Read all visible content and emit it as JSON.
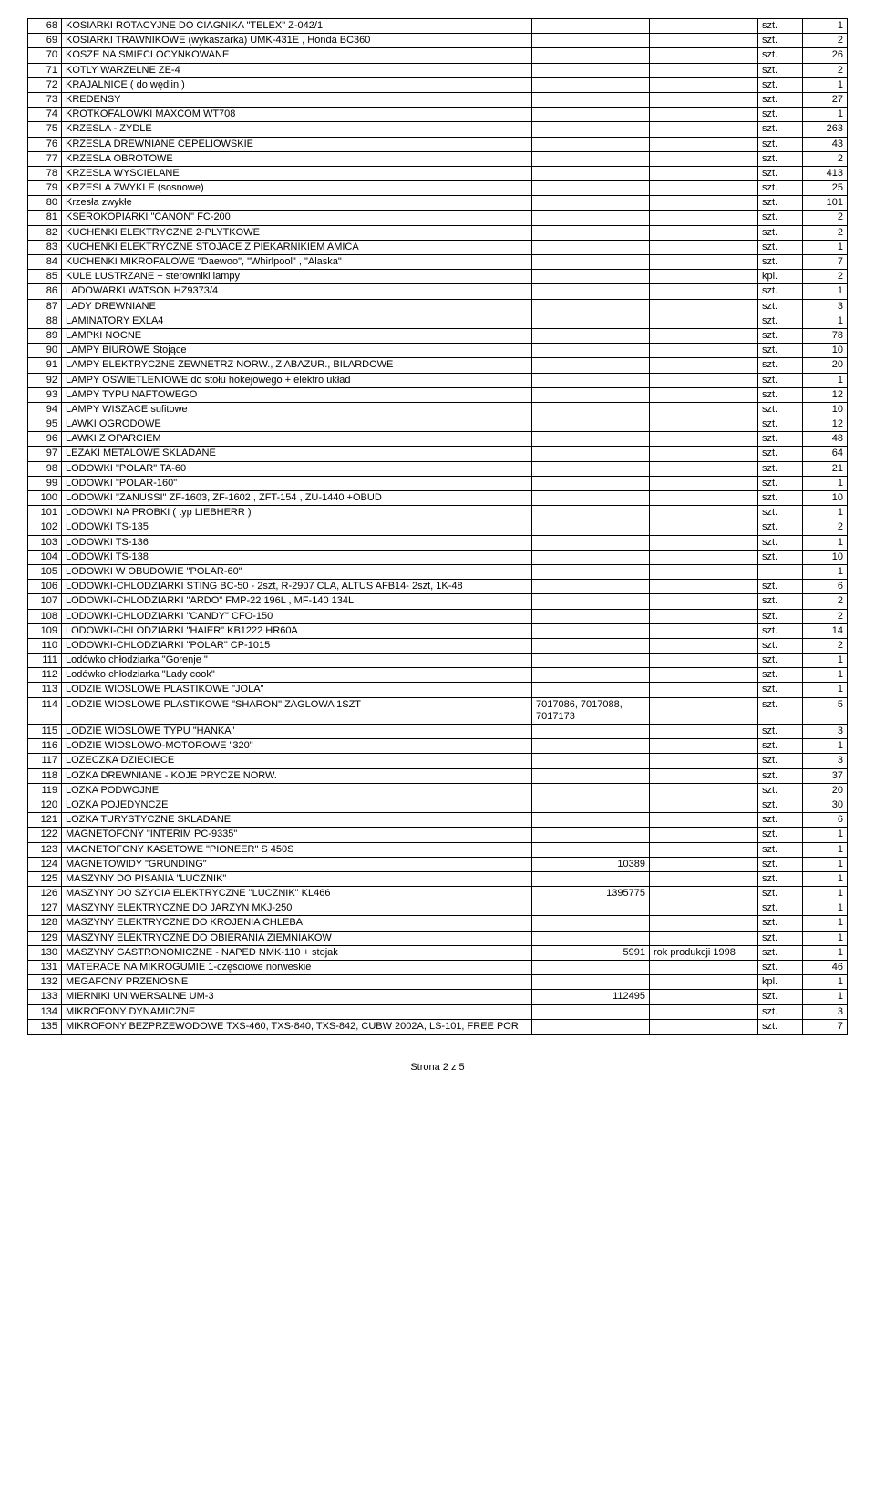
{
  "footer": "Strona 2 z 5",
  "rows": [
    {
      "n": "68",
      "d": " KOSIARKI ROTACYJNE DO CIAGNIKA            \"TELEX\"  Z-042/1",
      "c": "",
      "e": "",
      "u": "szt.",
      "q": "1"
    },
    {
      "n": "69",
      "d": " KOSIARKI TRAWNIKOWE  (wykaszarka)                UMK-431E ,  Honda BC360",
      "c": "",
      "e": "",
      "u": "szt.",
      "q": "2"
    },
    {
      "n": "70",
      "d": " KOSZE NA SMIECI OCYNKOWANE",
      "c": "",
      "e": "",
      "u": "szt.",
      "q": "26"
    },
    {
      "n": "71",
      "d": " KOTLY WARZELNE       ZE-4",
      "c": "",
      "e": "",
      "u": "szt.",
      "q": "2"
    },
    {
      "n": "72",
      "d": " KRAJALNICE       ( do wędlin )",
      "c": "",
      "e": "",
      "u": "szt.",
      "q": "1"
    },
    {
      "n": "73",
      "d": " KREDENSY",
      "c": "",
      "e": "",
      "u": "szt.",
      "q": "27"
    },
    {
      "n": "74",
      "d": " KROTKOFALOWKI      MAXCOM WT708",
      "c": "",
      "e": "",
      "u": "szt.",
      "q": "1"
    },
    {
      "n": "75",
      "d": " KRZESLA - ZYDLE",
      "c": "",
      "e": "",
      "u": "szt.",
      "q": "263"
    },
    {
      "n": "76",
      "d": " KRZESLA DREWNIANE CEPELIOWSKIE",
      "c": "",
      "e": "",
      "u": "szt.",
      "q": "43"
    },
    {
      "n": "77",
      "d": " KRZESLA OBROTOWE",
      "c": "",
      "e": "",
      "u": "szt.",
      "q": "2"
    },
    {
      "n": "78",
      "d": " KRZESLA WYSCIELANE",
      "c": "",
      "e": "",
      "u": "szt.",
      "q": "413"
    },
    {
      "n": "79",
      "d": " KRZESLA ZWYKLE   (sosnowe)",
      "c": "",
      "e": "",
      "u": "szt.",
      "q": "25"
    },
    {
      "n": "80",
      "d": " Krzesła  zwykłe",
      "c": "",
      "e": "",
      "u": "szt.",
      "q": "101"
    },
    {
      "n": "81",
      "d": " KSEROKOPIARKI \"CANON\"       FC-200",
      "c": "",
      "e": "",
      "u": "szt.",
      "q": "2"
    },
    {
      "n": "82",
      "d": " KUCHENKI ELEKTRYCZNE 2-PLYTKOWE",
      "c": "",
      "e": "",
      "u": "szt.",
      "q": "2"
    },
    {
      "n": "83",
      "d": " KUCHENKI ELEKTRYCZNE STOJACE Z PIEKARNIKIEM            AMICA",
      "c": "",
      "e": "",
      "u": "szt.",
      "q": "1"
    },
    {
      "n": "84",
      "d": " KUCHENKI MIKROFALOWE     \"Daewoo\",  \"Whirlpool\"  ,  \"Alaska\"",
      "c": "",
      "e": "",
      "u": "szt.",
      "q": "7"
    },
    {
      "n": "85",
      "d": " KULE LUSTRZANE  + sterowniki lampy",
      "c": "",
      "e": "",
      "u": "kpl.",
      "q": "2"
    },
    {
      "n": "86",
      "d": " LADOWARKI       WATSON      HZ9373/4",
      "c": "",
      "e": "",
      "u": "szt.",
      "q": "1"
    },
    {
      "n": "87",
      "d": " LADY DREWNIANE",
      "c": "",
      "e": "",
      "u": "szt.",
      "q": "3"
    },
    {
      "n": "88",
      "d": " LAMINATORY         EXLA4",
      "c": "",
      "e": "",
      "u": "szt.",
      "q": "1"
    },
    {
      "n": "89",
      "d": " LAMPKI NOCNE",
      "c": "",
      "e": "",
      "u": "szt.",
      "q": "78"
    },
    {
      "n": "90",
      "d": " LAMPY BIUROWE     Stojące",
      "c": "",
      "e": "",
      "u": "szt.",
      "q": "10"
    },
    {
      "n": "91",
      "d": " LAMPY ELEKTRYCZNE  ZEWNETRZ NORW.,    Z  ABAZUR.,  BILARDOWE",
      "c": "",
      "e": "",
      "u": "szt.",
      "q": "20"
    },
    {
      "n": "92",
      "d": " LAMPY OSWIETLENIOWE   do stołu hokejowego + elektro układ",
      "c": "",
      "e": "",
      "u": "szt.",
      "q": "1"
    },
    {
      "n": "93",
      "d": " LAMPY TYPU NAFTOWEGO",
      "c": "",
      "e": "",
      "u": "szt.",
      "q": "12"
    },
    {
      "n": "94",
      "d": " LAMPY WISZACE        sufitowe",
      "c": "",
      "e": "",
      "u": "szt.",
      "q": "10"
    },
    {
      "n": "95",
      "d": " LAWKI OGRODOWE",
      "c": "",
      "e": "",
      "u": "szt.",
      "q": "12"
    },
    {
      "n": "96",
      "d": " LAWKI Z OPARCIEM",
      "c": "",
      "e": "",
      "u": "szt.",
      "q": "48"
    },
    {
      "n": "97",
      "d": " LEZAKI METALOWE SKLADANE",
      "c": "",
      "e": "",
      "u": "szt.",
      "q": "64"
    },
    {
      "n": "98",
      "d": " LODOWKI \"POLAR\" TA-60",
      "c": "",
      "e": "",
      "u": "szt.",
      "q": "21"
    },
    {
      "n": "99",
      "d": " LODOWKI \"POLAR-160\"",
      "c": "",
      "e": "",
      "u": "szt.",
      "q": "1"
    },
    {
      "n": "100",
      "d": " LODOWKI \"ZANUSSI\"     ZF-1603,   ZF-1602 ,    ZFT-154 ,  ZU-1440 +OBUD",
      "c": "",
      "e": "",
      "u": "szt.",
      "q": "10"
    },
    {
      "n": "101",
      "d": " LODOWKI NA PROBKI     ( typ  LIEBHERR )",
      "c": "",
      "e": "",
      "u": "szt.",
      "q": "1"
    },
    {
      "n": "102",
      "d": " LODOWKI TS-135",
      "c": "",
      "e": "",
      "u": "szt.",
      "q": "2"
    },
    {
      "n": "103",
      "d": " LODOWKI TS-136",
      "c": "",
      "e": "",
      "u": "szt.",
      "q": "1"
    },
    {
      "n": "104",
      "d": " LODOWKI TS-138",
      "c": "",
      "e": "",
      "u": "szt.",
      "q": "10"
    },
    {
      "n": "105",
      "d": " LODOWKI W OBUDOWIE \"POLAR-60\"",
      "c": "",
      "e": "",
      "u": "",
      "q": "1"
    },
    {
      "n": "106",
      "d": " LODOWKI-CHLODZIARKI      STING BC-50 - 2szt,              R-2907   CLA,      ALTUS AFB14- 2szt,      1K-48",
      "c": "",
      "e": "",
      "u": "szt.",
      "q": "6"
    },
    {
      "n": "107",
      "d": " LODOWKI-CHLODZIARKI \"ARDO\"       FMP-22  196L  ,    MF-140  134L",
      "c": "",
      "e": "",
      "u": "szt.",
      "q": "2"
    },
    {
      "n": "108",
      "d": " LODOWKI-CHLODZIARKI \"CANDY\"    CFO-150",
      "c": "",
      "e": "",
      "u": "szt.",
      "q": "2"
    },
    {
      "n": "109",
      "d": " LODOWKI-CHLODZIARKI \"HAIER\"       KB1222 HR60A",
      "c": "",
      "e": "",
      "u": "szt.",
      "q": "14"
    },
    {
      "n": "110",
      "d": " LODOWKI-CHLODZIARKI \"POLAR\"     CP-1015",
      "c": "",
      "e": "",
      "u": "szt.",
      "q": "2"
    },
    {
      "n": "111",
      "d": " Lodówko chłodziarka  \"Gorenje \"",
      "c": "",
      "e": "",
      "u": "szt.",
      "q": "1"
    },
    {
      "n": "112",
      "d": " Lodówko chłodziarka  \"Lady cook\"",
      "c": "",
      "e": "",
      "u": "szt.",
      "q": "1"
    },
    {
      "n": "113",
      "d": " LODZIE WIOSLOWE PLASTIKOWE \"JOLA\"",
      "c": "",
      "e": "",
      "u": "szt.",
      "q": "1"
    },
    {
      "n": "114",
      "d": " LODZIE WIOSLOWE PLASTIKOWE \"SHARON\"       ZAGLOWA  1SZT",
      "c": "7017086, 7017088, 7017173",
      "e": "",
      "u": "szt.",
      "q": "5"
    },
    {
      "n": "115",
      "d": " LODZIE WIOSLOWE TYPU \"HANKA\"",
      "c": "",
      "e": "",
      "u": "szt.",
      "q": "3"
    },
    {
      "n": "116",
      "d": " LODZIE WIOSLOWO-MOTOROWE           \"320\"",
      "c": "",
      "e": "",
      "u": "szt.",
      "q": "1"
    },
    {
      "n": "117",
      "d": " LOZECZKA DZIECIECE",
      "c": "",
      "e": "",
      "u": "szt.",
      "q": "3"
    },
    {
      "n": "118",
      "d": " LOZKA DREWNIANE - KOJE                              PRYCZE NORW.",
      "c": "",
      "e": "",
      "u": "szt.",
      "q": "37"
    },
    {
      "n": "119",
      "d": " LOZKA PODWOJNE",
      "c": "",
      "e": "",
      "u": "szt.",
      "q": "20"
    },
    {
      "n": "120",
      "d": " LOZKA POJEDYNCZE",
      "c": "",
      "e": "",
      "u": "szt.",
      "q": "30"
    },
    {
      "n": "121",
      "d": " LOZKA TURYSTYCZNE SKLADANE",
      "c": "",
      "e": "",
      "u": "szt.",
      "q": "6"
    },
    {
      "n": "122",
      "d": " MAGNETOFONY \"INTERIM PC-9335\"",
      "c": "",
      "e": "",
      "u": "szt.",
      "q": "1"
    },
    {
      "n": "123",
      "d": " MAGNETOFONY KASETOWE \"PIONEER\"     S 450S",
      "c": "",
      "e": "",
      "u": "szt.",
      "q": "1"
    },
    {
      "n": "124",
      "d": " MAGNETOWIDY \"GRUNDING\"",
      "c": "10389",
      "e": "",
      "u": "szt.",
      "q": "1"
    },
    {
      "n": "125",
      "d": " MASZYNY DO PISANIA \"LUCZNIK\"",
      "c": "",
      "e": "",
      "u": "szt.",
      "q": "1"
    },
    {
      "n": "126",
      "d": " MASZYNY DO SZYCIA ELEKTRYCZNE \"LUCZNIK\"     KL466",
      "c": "1395775",
      "e": "",
      "u": "szt.",
      "q": "1"
    },
    {
      "n": "127",
      "d": " MASZYNY ELEKTRYCZNE DO JARZYN          MKJ-250",
      "c": "",
      "e": "",
      "u": "szt.",
      "q": "1"
    },
    {
      "n": "128",
      "d": " MASZYNY ELEKTRYCZNE DO KROJENIA CHLEBA",
      "c": "",
      "e": "",
      "u": "szt.",
      "q": "1"
    },
    {
      "n": "129",
      "d": " MASZYNY ELEKTRYCZNE DO OBIERANIA ZIEMNIAKOW",
      "c": "",
      "e": "",
      "u": "szt.",
      "q": "1"
    },
    {
      "n": "130",
      "d": " MASZYNY GASTRONOMICZNE - NAPED NMK-110     + stojak",
      "c": "5991",
      "e": "rok produkcji  1998",
      "u": "szt.",
      "q": "1"
    },
    {
      "n": "131",
      "d": " MATERACE NA MIKROGUMIE 1-częściowe  norweskie",
      "c": "",
      "e": "",
      "u": "szt.",
      "q": "46"
    },
    {
      "n": "132",
      "d": " MEGAFONY PRZENOSNE",
      "c": "",
      "e": "",
      "u": "kpl.",
      "q": "1"
    },
    {
      "n": "133",
      "d": " MIERNIKI UNIWERSALNE UM-3",
      "c": "112495",
      "e": "",
      "u": "szt.",
      "q": "1"
    },
    {
      "n": "134",
      "d": " MIKROFONY     DYNAMICZNE",
      "c": "",
      "e": "",
      "u": "szt.",
      "q": "3"
    },
    {
      "n": "135",
      "d": " MIKROFONY BEZPRZEWODOWE    TXS-460,   TXS-840,   TXS-842,   CUBW 2002A,   LS-101,    FREE POR",
      "c": "",
      "e": "",
      "u": "szt.",
      "q": "7"
    }
  ]
}
